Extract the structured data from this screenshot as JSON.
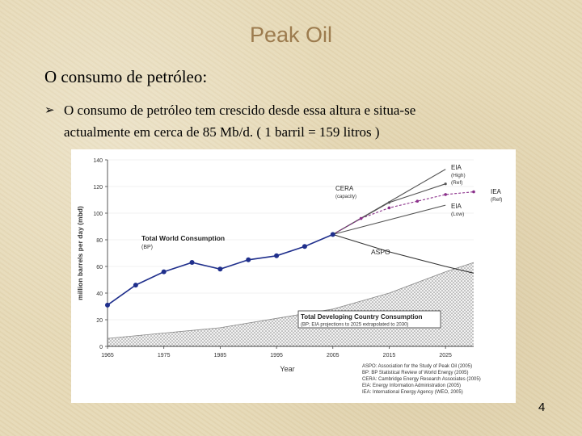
{
  "slide": {
    "title": "Peak Oil",
    "subtitle": "O consumo de petróleo:",
    "bullet": {
      "line1": "O consumo de petróleo tem crescido desde essa altura e situa-se",
      "line2": "actualmente em cerca de 85 Mb/d. ( 1 barril = 159 litros )"
    },
    "page_number": "4"
  },
  "colors": {
    "consumption": "#1f2f8c",
    "iea": "#8a2f8a",
    "forecast": "#555555",
    "aspo": "#333333",
    "developing_fill": "#c8c8c8"
  },
  "chart_data": {
    "type": "line",
    "title": "",
    "xlabel": "Year",
    "ylabel": "million barrels per day (mbd)",
    "xlim": [
      1965,
      2030
    ],
    "ylim": [
      0,
      140
    ],
    "x_ticks": [
      "1965",
      "1975",
      "1985",
      "1995",
      "2005",
      "2015",
      "2025"
    ],
    "y_ticks": [
      "0",
      "20",
      "40",
      "60",
      "80",
      "100",
      "120",
      "140"
    ],
    "series": [
      {
        "name": "Total World Consumption",
        "source": "(BP)",
        "x": [
          1965,
          1970,
          1975,
          1980,
          1985,
          1990,
          1995,
          2000,
          2005
        ],
        "y": [
          31,
          46,
          56,
          63,
          58,
          65,
          68,
          75,
          84
        ]
      },
      {
        "name": "EIA",
        "sub": "(High)",
        "source": "(Ref)",
        "x": [
          2005,
          2025
        ],
        "y": [
          84,
          133
        ]
      },
      {
        "name": "CERA",
        "sub": "(capacity)",
        "x": [
          2005,
          2015,
          2025
        ],
        "y": [
          84,
          108,
          122
        ]
      },
      {
        "name": "IEA",
        "source": "(Ref)",
        "x": [
          2005,
          2010,
          2015,
          2020,
          2025,
          2030
        ],
        "y": [
          84,
          96,
          104,
          109,
          114,
          116
        ]
      },
      {
        "name": "EIA",
        "sub": "(Low)",
        "x": [
          2005,
          2025
        ],
        "y": [
          84,
          106
        ]
      },
      {
        "name": "ASPO",
        "x": [
          2005,
          2015,
          2025,
          2030
        ],
        "y": [
          84,
          71,
          60,
          55
        ]
      },
      {
        "name": "Total Developing Country Consumption",
        "source": "(BP; EIA projections to 2025 extrapolated to 2030)",
        "x": [
          1965,
          1975,
          1985,
          1995,
          2005,
          2015,
          2025,
          2030
        ],
        "y": [
          6,
          10,
          14,
          21,
          28,
          40,
          56,
          63
        ]
      }
    ],
    "legend_sources": [
      "ASPO: Association for the Study of Peak Oil (2005)",
      "BP: BP Statistical Review of World Energy (2005)",
      "CERA: Cambridge Energy Research Associates (2005)",
      "EIA: Energy Information Administration (2005)",
      "IEA: International Energy Agency (WEO, 2005)"
    ]
  }
}
